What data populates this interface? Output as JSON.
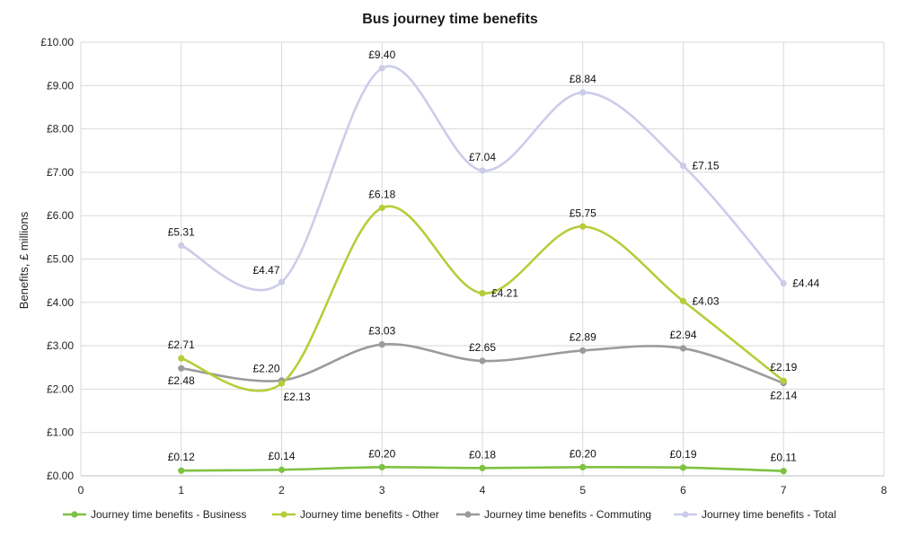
{
  "chart_data": {
    "type": "line",
    "title": "Bus journey time benefits",
    "xlabel": "",
    "ylabel": "Benefits, £ millions",
    "xlim": [
      0,
      8
    ],
    "ylim": [
      0,
      10
    ],
    "x_ticks": [
      "0",
      "1",
      "2",
      "3",
      "4",
      "5",
      "6",
      "7",
      "8"
    ],
    "y_ticks": [
      "£0.00",
      "£1.00",
      "£2.00",
      "£3.00",
      "£4.00",
      "£5.00",
      "£6.00",
      "£7.00",
      "£8.00",
      "£9.00",
      "£10.00"
    ],
    "grid": true,
    "smooth": true,
    "legend_position": "bottom",
    "x": [
      1,
      2,
      3,
      4,
      5,
      6,
      7
    ],
    "series": [
      {
        "name": "Journey time benefits - Business",
        "color": "#7ec242",
        "values": [
          0.12,
          0.14,
          0.2,
          0.18,
          0.2,
          0.19,
          0.11
        ],
        "labels": [
          "£0.12",
          "£0.14",
          "£0.20",
          "£0.18",
          "£0.20",
          "£0.19",
          "£0.11"
        ],
        "label_pos": [
          "above",
          "above",
          "above",
          "above",
          "above",
          "above",
          "above"
        ]
      },
      {
        "name": "Journey time benefits - Other",
        "color": "#b8cc3a",
        "values": [
          2.71,
          2.13,
          6.18,
          4.21,
          5.75,
          4.03,
          2.19
        ],
        "labels": [
          "£2.71",
          "£2.13",
          "£6.18",
          "£4.21",
          "£5.75",
          "£4.03",
          "£2.19"
        ],
        "label_pos": [
          "above",
          "below-right",
          "above",
          "right",
          "above",
          "right",
          "above"
        ]
      },
      {
        "name": "Journey time benefits - Commuting",
        "color": "#9b9b9b",
        "values": [
          2.48,
          2.2,
          3.03,
          2.65,
          2.89,
          2.94,
          2.14
        ],
        "labels": [
          "£2.48",
          "£2.20",
          "£3.03",
          "£2.65",
          "£2.89",
          "£2.94",
          "£2.14"
        ],
        "label_pos": [
          "below",
          "above-left",
          "above",
          "above",
          "above",
          "above",
          "below"
        ]
      },
      {
        "name": "Journey time benefits - Total",
        "color": "#ccccea",
        "values": [
          5.31,
          4.47,
          9.4,
          7.04,
          8.84,
          7.15,
          4.44
        ],
        "labels": [
          "£5.31",
          "£4.47",
          "£9.40",
          "£7.04",
          "£8.84",
          "£7.15",
          "£4.44"
        ],
        "label_pos": [
          "above",
          "above-left",
          "above",
          "above",
          "above",
          "right",
          "right"
        ]
      }
    ]
  }
}
